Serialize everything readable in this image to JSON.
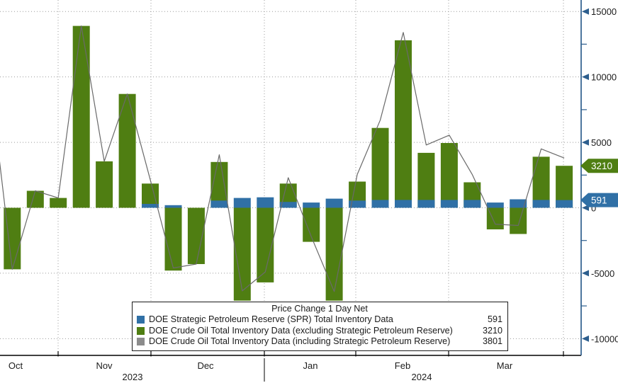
{
  "legend": {
    "title": "Price Change 1 Day Net",
    "items": [
      {
        "label": "DOE Strategic Petroleum Reserve (SPR) Total Inventory Data",
        "value": "591",
        "color": "#3070a6"
      },
      {
        "label": "DOE Crude Oil Total Inventory Data (excluding Strategic Petroleum Reserve)",
        "value": "3210",
        "color": "#4f7e12"
      },
      {
        "label": "DOE Crude Oil Total Inventory Data (including Strategic Petroleum Reserve)",
        "value": "3801",
        "color": "#8c8c8c"
      }
    ]
  },
  "chart_data": {
    "type": "bar",
    "title": "Price Change 1 Day Net",
    "grid": "dotted",
    "legend_position": "bottom-center",
    "series": [
      {
        "name": "DOE Strategic Petroleum Reserve (SPR) Total Inventory Data",
        "type": "bar",
        "color": "#3070a6",
        "current_value": 591,
        "values": [
          0,
          0,
          0,
          0,
          0,
          0,
          300,
          200,
          0,
          550,
          750,
          800,
          450,
          400,
          700,
          550,
          600,
          600,
          600,
          600,
          600,
          400,
          650,
          600,
          591
        ]
      },
      {
        "name": "DOE Crude Oil Total Inventory Data (excluding Strategic Petroleum Reserve)",
        "type": "bar",
        "color": "#4f7e12",
        "current_value": 3210,
        "values": [
          -4700,
          1300,
          750,
          13900,
          3550,
          8700,
          1850,
          -4800,
          -4300,
          3500,
          -7100,
          -5700,
          1850,
          -2600,
          -7100,
          2000,
          6100,
          12800,
          4200,
          4950,
          1950,
          -1650,
          -2000,
          3900,
          3210
        ]
      },
      {
        "name": "DOE Crude Oil Total Inventory Data (including Strategic Petroleum Reserve)",
        "type": "line",
        "color": "#6a6a6a",
        "current_value": 3801,
        "entry_value_before_window": 10300,
        "values": [
          -4700,
          1300,
          750,
          13900,
          3550,
          8700,
          2150,
          -4600,
          -4300,
          4050,
          -6350,
          -4900,
          2300,
          -2200,
          -6400,
          2550,
          6700,
          13400,
          4800,
          5550,
          2550,
          -1250,
          -1350,
          4500,
          3801
        ]
      }
    ],
    "y_axis": {
      "side": "right",
      "major_ticks": [
        15000,
        10000,
        5000,
        0,
        -5000,
        -10000
      ],
      "minor_ticks": [
        12500,
        7500,
        2500,
        -2500,
        -7500
      ],
      "labels": [
        "15000",
        "10000",
        "5000",
        "0",
        "-5000",
        "-10000"
      ],
      "range": [
        -11500,
        15900
      ]
    },
    "x_axis": {
      "month_labels": [
        "Oct",
        "Nov",
        "Dec",
        "Jan",
        "Feb",
        "Mar"
      ],
      "year_labels": [
        "2023",
        "2024"
      ]
    },
    "value_badges": [
      {
        "text": "3210",
        "value": 3210,
        "color": "#4f7e12"
      },
      {
        "text": "591",
        "value": 591,
        "color": "#3070a6"
      }
    ]
  }
}
